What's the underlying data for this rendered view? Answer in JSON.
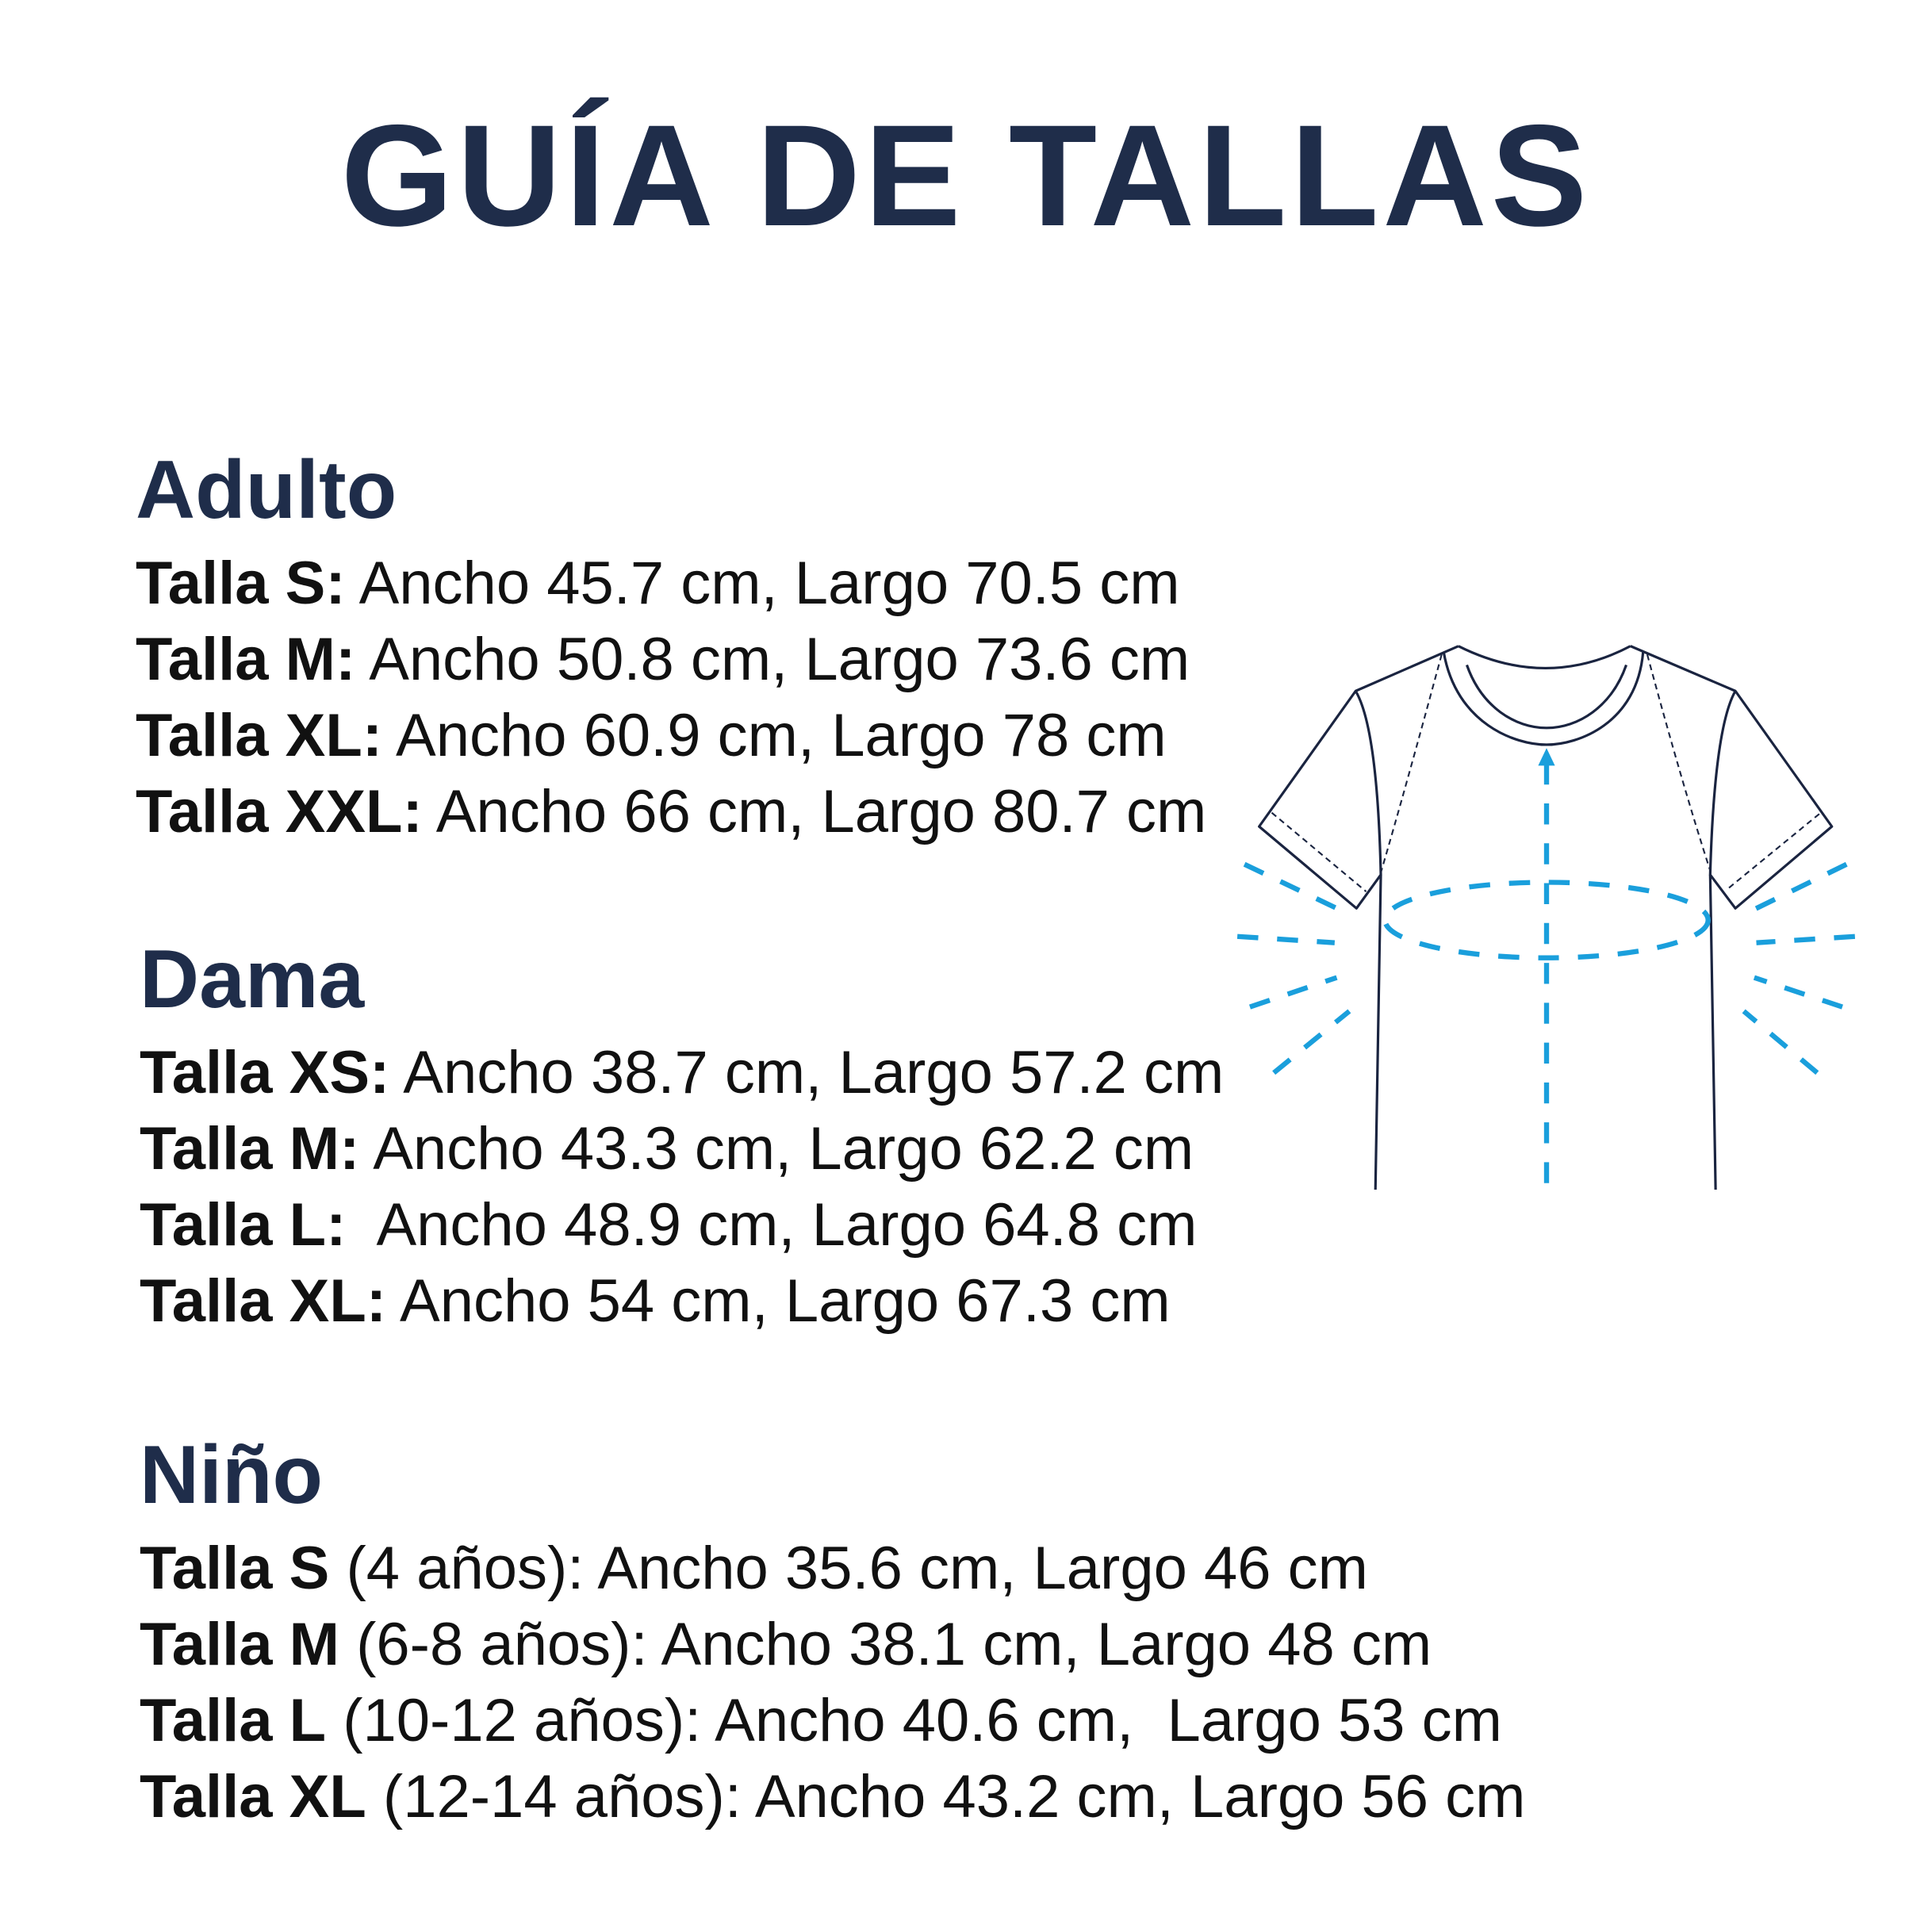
{
  "title": "GUÍA DE TALLAS",
  "sections": [
    {
      "heading": "Adulto",
      "rows": [
        {
          "label": "Talla S:",
          "text": " Ancho 45.7 cm, Largo 70.5 cm"
        },
        {
          "label": "Talla M:",
          "text": " Ancho 50.8 cm, Largo 73.6 cm"
        },
        {
          "label": "Talla XL:",
          "text": " Ancho 60.9 cm, Largo 78 cm"
        },
        {
          "label": "Talla XXL:",
          "text": " Ancho 66 cm, Largo 80.7 cm"
        }
      ]
    },
    {
      "heading": "Dama",
      "rows": [
        {
          "label": "Talla XS:",
          "text": " Ancho 38.7 cm, Largo 57.2 cm"
        },
        {
          "label": "Talla M:",
          "text": " Ancho 43.3 cm, Largo 62.2 cm"
        },
        {
          "label": "Talla L:",
          "text": "  Ancho 48.9 cm, Largo 64.8 cm"
        },
        {
          "label": "Talla XL:",
          "text": " Ancho 54 cm, Largo 67.3 cm"
        }
      ]
    },
    {
      "heading": "Niño",
      "rows": [
        {
          "label": "Talla S",
          "text": " (4 años): Ancho 35.6 cm, Largo 46 cm"
        },
        {
          "label": "Talla M",
          "text": " (6-8 años): Ancho 38.1 cm, Largo 48 cm"
        },
        {
          "label": "Talla L",
          "text": " (10-12 años): Ancho 40.6 cm,  Largo 53 cm"
        },
        {
          "label": "Talla XL",
          "text": " (12-14 años): Ancho 43.2 cm, Largo 56 cm"
        }
      ]
    }
  ],
  "illustration": {
    "icon": "t-shirt-measurement-icon",
    "outline_color": "#1a2440",
    "measure_color": "#1a9fdc"
  },
  "colors": {
    "heading": "#1f2d4a",
    "text": "#111111"
  }
}
